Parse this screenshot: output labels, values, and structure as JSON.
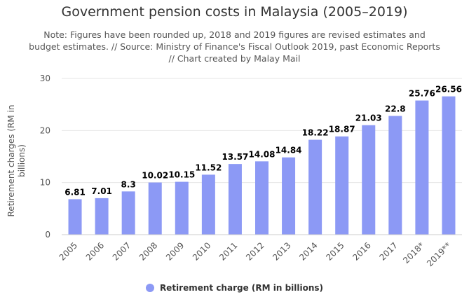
{
  "title": "Government pension costs in Malaysia (2005–2019)",
  "subtitle": "Note: Figures have been rounded up, 2018 and 2019 figures are revised estimates and budget estimates. // Source: Ministry of Finance's Fiscal Outlook 2019, past Economic Reports // Chart created by Malay Mail",
  "colors": {
    "bar": "#8c99f5",
    "grid": "#e6e6e6"
  },
  "chart_data": {
    "type": "bar",
    "title": "Government pension costs in Malaysia (2005–2019)",
    "categories": [
      "2005",
      "2006",
      "2007",
      "2008",
      "2009",
      "2010",
      "2011",
      "2012",
      "2013",
      "2014",
      "2015",
      "2016",
      "2017",
      "2018*",
      "2019**"
    ],
    "series": [
      {
        "name": "Retirement charge (RM in billions)",
        "values": [
          6.81,
          7.01,
          8.3,
          10.02,
          10.15,
          11.52,
          13.57,
          14.08,
          14.84,
          18.22,
          18.87,
          21.03,
          22.8,
          25.76,
          26.56
        ]
      }
    ],
    "data_labels": [
      "6.81",
      "7.01",
      "8.3",
      "10.02",
      "10.15",
      "11.52",
      "13.57",
      "14.08",
      "14.84",
      "18.22",
      "18.87",
      "21.03",
      "22.8",
      "25.76",
      "26.56"
    ],
    "xlabel": "",
    "ylabel": "Retirement charges (RM in billions)",
    "ylim": [
      0,
      30
    ],
    "yticks": [
      0,
      10,
      20,
      30
    ],
    "grid": true,
    "legend": "bottom-center"
  }
}
